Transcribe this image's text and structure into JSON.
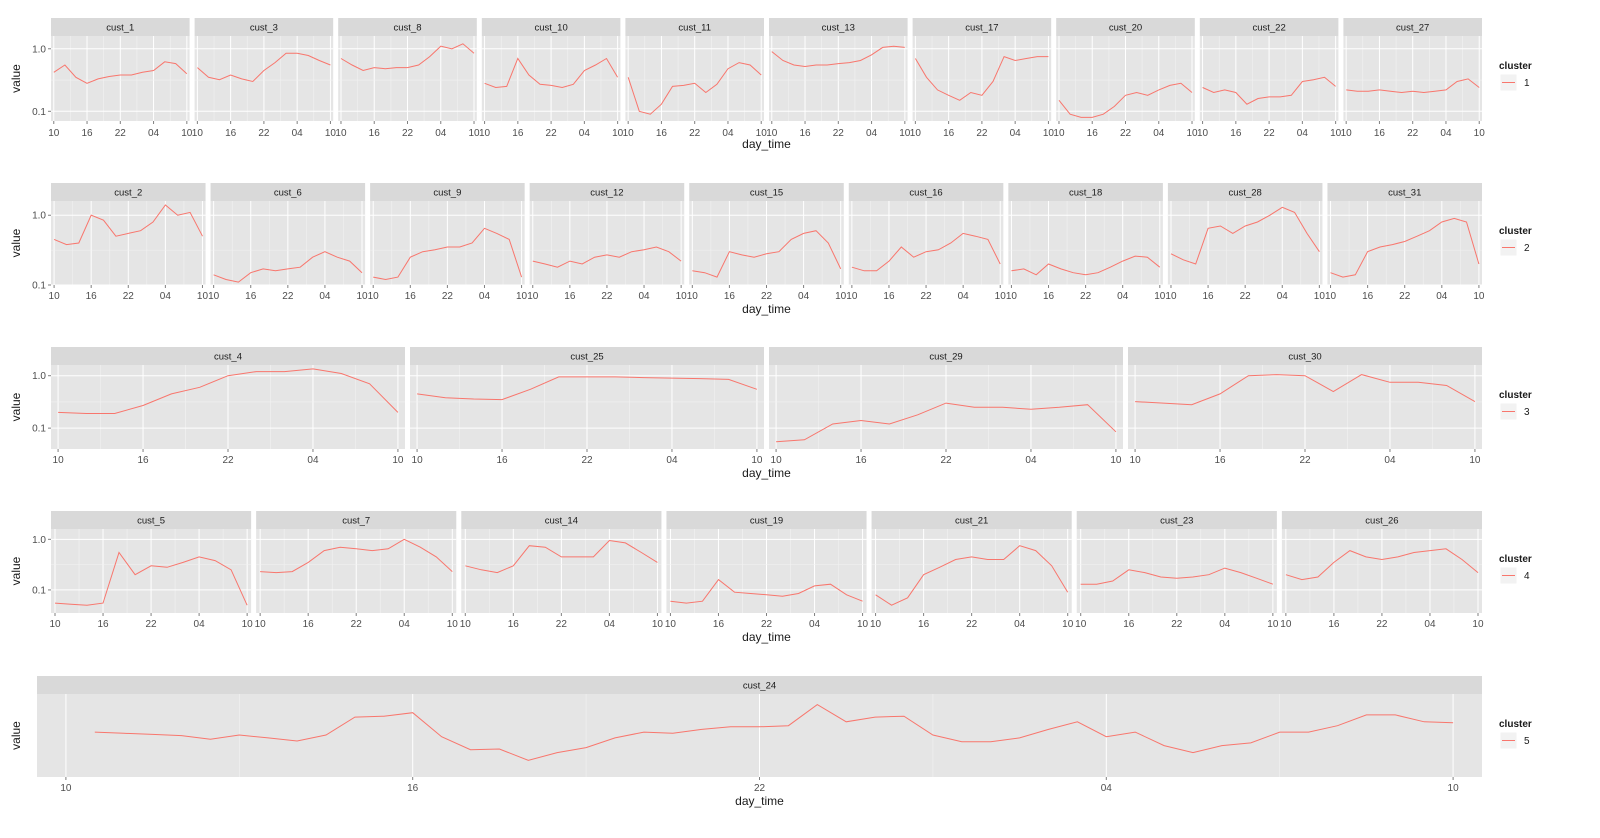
{
  "chart_data": [
    {
      "type": "line",
      "cluster": "1",
      "xlabel": "day_time",
      "ylabel": "value",
      "y_scale": "log10",
      "ylim": [
        0.07,
        1.6
      ],
      "y_ticks": [
        "0.1",
        "1.0"
      ],
      "x_ticks": [
        "10",
        "16",
        "22",
        "04",
        "10"
      ],
      "legend": {
        "title": "cluster",
        "label": "1",
        "placement": "right"
      },
      "series_color": "#F8766D",
      "x": [
        10,
        12,
        14,
        16,
        18,
        20,
        22,
        24,
        26,
        28,
        30,
        32,
        34
      ],
      "series": [
        {
          "name": "cust_1",
          "values": [
            0.42,
            0.55,
            0.35,
            0.28,
            0.33,
            0.36,
            0.38,
            0.38,
            0.42,
            0.45,
            0.62,
            0.58,
            0.4
          ]
        },
        {
          "name": "cust_3",
          "values": [
            0.5,
            0.35,
            0.32,
            0.38,
            0.33,
            0.3,
            0.45,
            0.6,
            0.85,
            0.85,
            0.78,
            0.65,
            0.55
          ]
        },
        {
          "name": "cust_8",
          "values": [
            0.7,
            0.55,
            0.45,
            0.5,
            0.48,
            0.5,
            0.5,
            0.55,
            0.75,
            1.1,
            1.0,
            1.2,
            0.85
          ]
        },
        {
          "name": "cust_10",
          "values": [
            0.28,
            0.24,
            0.25,
            0.7,
            0.38,
            0.27,
            0.26,
            0.24,
            0.27,
            0.45,
            0.55,
            0.7,
            0.35
          ]
        },
        {
          "name": "cust_11",
          "values": [
            0.35,
            0.1,
            0.09,
            0.13,
            0.25,
            0.26,
            0.28,
            0.2,
            0.27,
            0.48,
            0.6,
            0.55,
            0.38
          ]
        },
        {
          "name": "cust_13",
          "values": [
            0.9,
            0.65,
            0.55,
            0.52,
            0.55,
            0.55,
            0.58,
            0.6,
            0.65,
            0.8,
            1.05,
            1.1,
            1.05
          ]
        },
        {
          "name": "cust_17",
          "values": [
            0.7,
            0.35,
            0.22,
            0.18,
            0.15,
            0.2,
            0.18,
            0.3,
            0.75,
            0.65,
            0.7,
            0.75,
            0.75
          ]
        },
        {
          "name": "cust_20",
          "values": [
            0.15,
            0.09,
            0.08,
            0.08,
            0.09,
            0.12,
            0.18,
            0.2,
            0.18,
            0.22,
            0.26,
            0.28,
            0.2
          ]
        },
        {
          "name": "cust_22",
          "values": [
            0.24,
            0.2,
            0.22,
            0.2,
            0.13,
            0.16,
            0.17,
            0.17,
            0.18,
            0.3,
            0.32,
            0.35,
            0.25
          ]
        },
        {
          "name": "cust_27",
          "values": [
            0.22,
            0.21,
            0.21,
            0.22,
            0.21,
            0.2,
            0.21,
            0.2,
            0.21,
            0.22,
            0.3,
            0.33,
            0.24
          ]
        }
      ]
    },
    {
      "type": "line",
      "cluster": "2",
      "xlabel": "day_time",
      "ylabel": "value",
      "y_scale": "log10",
      "ylim": [
        0.1,
        1.6
      ],
      "y_ticks": [
        "0.1",
        "1.0"
      ],
      "x_ticks": [
        "10",
        "16",
        "22",
        "04",
        "10"
      ],
      "legend": {
        "title": "cluster",
        "label": "2",
        "placement": "right"
      },
      "series_color": "#F8766D",
      "x": [
        10,
        12,
        14,
        16,
        18,
        20,
        22,
        24,
        26,
        28,
        30,
        32,
        34
      ],
      "series": [
        {
          "name": "cust_2",
          "values": [
            0.45,
            0.38,
            0.4,
            1.0,
            0.85,
            0.5,
            0.55,
            0.6,
            0.8,
            1.4,
            1.0,
            1.1,
            0.5
          ]
        },
        {
          "name": "cust_6",
          "values": [
            0.14,
            0.12,
            0.11,
            0.15,
            0.17,
            0.16,
            0.17,
            0.18,
            0.25,
            0.3,
            0.25,
            0.22,
            0.15
          ]
        },
        {
          "name": "cust_9",
          "values": [
            0.13,
            0.12,
            0.13,
            0.25,
            0.3,
            0.32,
            0.35,
            0.35,
            0.4,
            0.65,
            0.55,
            0.45,
            0.13
          ]
        },
        {
          "name": "cust_12",
          "values": [
            0.22,
            0.2,
            0.18,
            0.22,
            0.2,
            0.25,
            0.27,
            0.25,
            0.3,
            0.32,
            0.35,
            0.3,
            0.22
          ]
        },
        {
          "name": "cust_15",
          "values": [
            0.16,
            0.15,
            0.13,
            0.3,
            0.27,
            0.25,
            0.28,
            0.3,
            0.45,
            0.55,
            0.6,
            0.4,
            0.17
          ]
        },
        {
          "name": "cust_16",
          "values": [
            0.18,
            0.16,
            0.16,
            0.22,
            0.35,
            0.25,
            0.3,
            0.32,
            0.4,
            0.55,
            0.5,
            0.45,
            0.2
          ]
        },
        {
          "name": "cust_18",
          "values": [
            0.16,
            0.17,
            0.14,
            0.2,
            0.17,
            0.15,
            0.14,
            0.15,
            0.18,
            0.22,
            0.26,
            0.25,
            0.18
          ]
        },
        {
          "name": "cust_28",
          "values": [
            0.28,
            0.23,
            0.2,
            0.65,
            0.7,
            0.55,
            0.7,
            0.8,
            1.0,
            1.3,
            1.1,
            0.55,
            0.3
          ]
        },
        {
          "name": "cust_31",
          "values": [
            0.15,
            0.13,
            0.14,
            0.3,
            0.35,
            0.38,
            0.42,
            0.5,
            0.6,
            0.8,
            0.9,
            0.8,
            0.2
          ]
        }
      ]
    },
    {
      "type": "line",
      "cluster": "3",
      "xlabel": "day_time",
      "ylabel": "value",
      "y_scale": "log10",
      "ylim": [
        0.04,
        1.6
      ],
      "y_ticks": [
        "0.1",
        "1.0"
      ],
      "x_ticks": [
        "10",
        "16",
        "22",
        "04",
        "10"
      ],
      "legend": {
        "title": "cluster",
        "label": "3",
        "placement": "right"
      },
      "series_color": "#F8766D",
      "x": [
        10,
        12,
        14,
        16,
        18,
        20,
        22,
        24,
        26,
        28,
        30,
        32,
        34
      ],
      "series": [
        {
          "name": "cust_4",
          "values": [
            0.2,
            0.19,
            0.19,
            0.27,
            0.45,
            0.6,
            1.0,
            1.2,
            1.2,
            1.35,
            1.1,
            0.7,
            0.2
          ]
        },
        {
          "name": "cust_25",
          "values": [
            0.45,
            0.38,
            0.36,
            0.35,
            0.55,
            0.95,
            0.95,
            0.95,
            0.92,
            0.9,
            0.88,
            0.85,
            0.55
          ]
        },
        {
          "name": "cust_29",
          "values": [
            0.055,
            0.06,
            0.12,
            0.14,
            0.12,
            0.18,
            0.3,
            0.25,
            0.25,
            0.23,
            0.25,
            0.28,
            0.085
          ]
        },
        {
          "name": "cust_30",
          "values": [
            0.32,
            0.3,
            0.28,
            0.45,
            1.0,
            1.05,
            1.0,
            0.5,
            1.05,
            0.75,
            0.75,
            0.65,
            0.32
          ]
        }
      ]
    },
    {
      "type": "line",
      "cluster": "4",
      "xlabel": "day_time",
      "ylabel": "value",
      "y_scale": "log10",
      "ylim": [
        0.035,
        1.6
      ],
      "y_ticks": [
        "0.1",
        "1.0"
      ],
      "x_ticks": [
        "10",
        "16",
        "22",
        "04",
        "10"
      ],
      "legend": {
        "title": "cluster",
        "label": "4",
        "placement": "right"
      },
      "series_color": "#F8766D",
      "x": [
        10,
        12,
        14,
        16,
        18,
        20,
        22,
        24,
        26,
        28,
        30,
        32,
        34
      ],
      "series": [
        {
          "name": "cust_5",
          "values": [
            0.055,
            0.052,
            0.05,
            0.055,
            0.55,
            0.2,
            0.3,
            0.28,
            0.35,
            0.45,
            0.38,
            0.25,
            0.05
          ]
        },
        {
          "name": "cust_7",
          "values": [
            0.23,
            0.22,
            0.23,
            0.35,
            0.6,
            0.7,
            0.65,
            0.6,
            0.65,
            1.0,
            0.7,
            0.45,
            0.23
          ]
        },
        {
          "name": "cust_14",
          "values": [
            0.3,
            0.25,
            0.22,
            0.3,
            0.75,
            0.7,
            0.45,
            0.45,
            0.45,
            0.95,
            0.85,
            0.55,
            0.35
          ]
        },
        {
          "name": "cust_19",
          "values": [
            0.06,
            0.055,
            0.06,
            0.16,
            0.09,
            0.085,
            0.08,
            0.075,
            0.085,
            0.12,
            0.13,
            0.08,
            0.06
          ]
        },
        {
          "name": "cust_21",
          "values": [
            0.08,
            0.05,
            0.07,
            0.2,
            0.28,
            0.4,
            0.45,
            0.4,
            0.4,
            0.75,
            0.6,
            0.3,
            0.09
          ]
        },
        {
          "name": "cust_23",
          "values": [
            0.13,
            0.13,
            0.15,
            0.25,
            0.22,
            0.18,
            0.17,
            0.18,
            0.2,
            0.27,
            0.22,
            0.17,
            0.13
          ]
        },
        {
          "name": "cust_26",
          "values": [
            0.2,
            0.16,
            0.18,
            0.35,
            0.6,
            0.45,
            0.4,
            0.45,
            0.55,
            0.6,
            0.65,
            0.4,
            0.22
          ]
        }
      ]
    },
    {
      "type": "line",
      "cluster": "5",
      "xlabel": "day_time",
      "ylabel": "value",
      "y_scale": "log10",
      "ylim": [
        0.7,
        2.2
      ],
      "y_ticks": [],
      "x_ticks": [
        "10",
        "16",
        "22",
        "04",
        "10"
      ],
      "legend": {
        "title": "cluster",
        "label": "5",
        "placement": "right"
      },
      "series_color": "#F8766D",
      "x": [
        10.5,
        11,
        11.5,
        12,
        12.5,
        13,
        13.5,
        14,
        14.5,
        15,
        15.5,
        16,
        16.5,
        17,
        17.5,
        18,
        18.5,
        19,
        19.5,
        20,
        20.5,
        21,
        21.5,
        22,
        22.5,
        23,
        23.5,
        24,
        24.5,
        25,
        25.5,
        26,
        26.5,
        27,
        27.5,
        28,
        28.5,
        29,
        29.5,
        30,
        30.5,
        31,
        31.5,
        32,
        32.5,
        33,
        33.5,
        34
      ],
      "series": [
        {
          "name": "cust_24",
          "values": [
            1.3,
            1.28,
            1.26,
            1.24,
            1.18,
            1.25,
            1.2,
            1.15,
            1.25,
            1.6,
            1.62,
            1.7,
            1.22,
            1.02,
            1.03,
            0.88,
            0.98,
            1.05,
            1.2,
            1.3,
            1.28,
            1.35,
            1.4,
            1.4,
            1.42,
            1.9,
            1.5,
            1.6,
            1.62,
            1.25,
            1.14,
            1.14,
            1.2,
            1.35,
            1.5,
            1.22,
            1.3,
            1.08,
            0.98,
            1.08,
            1.12,
            1.3,
            1.3,
            1.42,
            1.65,
            1.65,
            1.5,
            1.48
          ]
        }
      ]
    }
  ]
}
